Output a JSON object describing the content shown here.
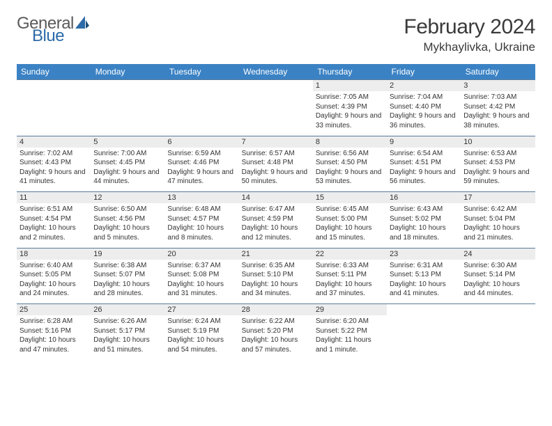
{
  "logo": {
    "text1": "General",
    "text2": "Blue"
  },
  "title": "February 2024",
  "location": "Mykhaylivka, Ukraine",
  "colors": {
    "header_bg": "#3b82c4",
    "daynum_bg": "#ededed",
    "rule": "#5a7a9a"
  },
  "weekdays": [
    "Sunday",
    "Monday",
    "Tuesday",
    "Wednesday",
    "Thursday",
    "Friday",
    "Saturday"
  ],
  "weeks": [
    [
      null,
      null,
      null,
      null,
      {
        "n": "1",
        "sr": "7:05 AM",
        "ss": "4:39 PM",
        "dl": "9 hours and 33 minutes."
      },
      {
        "n": "2",
        "sr": "7:04 AM",
        "ss": "4:40 PM",
        "dl": "9 hours and 36 minutes."
      },
      {
        "n": "3",
        "sr": "7:03 AM",
        "ss": "4:42 PM",
        "dl": "9 hours and 38 minutes."
      }
    ],
    [
      {
        "n": "4",
        "sr": "7:02 AM",
        "ss": "4:43 PM",
        "dl": "9 hours and 41 minutes."
      },
      {
        "n": "5",
        "sr": "7:00 AM",
        "ss": "4:45 PM",
        "dl": "9 hours and 44 minutes."
      },
      {
        "n": "6",
        "sr": "6:59 AM",
        "ss": "4:46 PM",
        "dl": "9 hours and 47 minutes."
      },
      {
        "n": "7",
        "sr": "6:57 AM",
        "ss": "4:48 PM",
        "dl": "9 hours and 50 minutes."
      },
      {
        "n": "8",
        "sr": "6:56 AM",
        "ss": "4:50 PM",
        "dl": "9 hours and 53 minutes."
      },
      {
        "n": "9",
        "sr": "6:54 AM",
        "ss": "4:51 PM",
        "dl": "9 hours and 56 minutes."
      },
      {
        "n": "10",
        "sr": "6:53 AM",
        "ss": "4:53 PM",
        "dl": "9 hours and 59 minutes."
      }
    ],
    [
      {
        "n": "11",
        "sr": "6:51 AM",
        "ss": "4:54 PM",
        "dl": "10 hours and 2 minutes."
      },
      {
        "n": "12",
        "sr": "6:50 AM",
        "ss": "4:56 PM",
        "dl": "10 hours and 5 minutes."
      },
      {
        "n": "13",
        "sr": "6:48 AM",
        "ss": "4:57 PM",
        "dl": "10 hours and 8 minutes."
      },
      {
        "n": "14",
        "sr": "6:47 AM",
        "ss": "4:59 PM",
        "dl": "10 hours and 12 minutes."
      },
      {
        "n": "15",
        "sr": "6:45 AM",
        "ss": "5:00 PM",
        "dl": "10 hours and 15 minutes."
      },
      {
        "n": "16",
        "sr": "6:43 AM",
        "ss": "5:02 PM",
        "dl": "10 hours and 18 minutes."
      },
      {
        "n": "17",
        "sr": "6:42 AM",
        "ss": "5:04 PM",
        "dl": "10 hours and 21 minutes."
      }
    ],
    [
      {
        "n": "18",
        "sr": "6:40 AM",
        "ss": "5:05 PM",
        "dl": "10 hours and 24 minutes."
      },
      {
        "n": "19",
        "sr": "6:38 AM",
        "ss": "5:07 PM",
        "dl": "10 hours and 28 minutes."
      },
      {
        "n": "20",
        "sr": "6:37 AM",
        "ss": "5:08 PM",
        "dl": "10 hours and 31 minutes."
      },
      {
        "n": "21",
        "sr": "6:35 AM",
        "ss": "5:10 PM",
        "dl": "10 hours and 34 minutes."
      },
      {
        "n": "22",
        "sr": "6:33 AM",
        "ss": "5:11 PM",
        "dl": "10 hours and 37 minutes."
      },
      {
        "n": "23",
        "sr": "6:31 AM",
        "ss": "5:13 PM",
        "dl": "10 hours and 41 minutes."
      },
      {
        "n": "24",
        "sr": "6:30 AM",
        "ss": "5:14 PM",
        "dl": "10 hours and 44 minutes."
      }
    ],
    [
      {
        "n": "25",
        "sr": "6:28 AM",
        "ss": "5:16 PM",
        "dl": "10 hours and 47 minutes."
      },
      {
        "n": "26",
        "sr": "6:26 AM",
        "ss": "5:17 PM",
        "dl": "10 hours and 51 minutes."
      },
      {
        "n": "27",
        "sr": "6:24 AM",
        "ss": "5:19 PM",
        "dl": "10 hours and 54 minutes."
      },
      {
        "n": "28",
        "sr": "6:22 AM",
        "ss": "5:20 PM",
        "dl": "10 hours and 57 minutes."
      },
      {
        "n": "29",
        "sr": "6:20 AM",
        "ss": "5:22 PM",
        "dl": "11 hours and 1 minute."
      },
      null,
      null
    ]
  ],
  "labels": {
    "sunrise": "Sunrise: ",
    "sunset": "Sunset: ",
    "daylight": "Daylight: "
  }
}
